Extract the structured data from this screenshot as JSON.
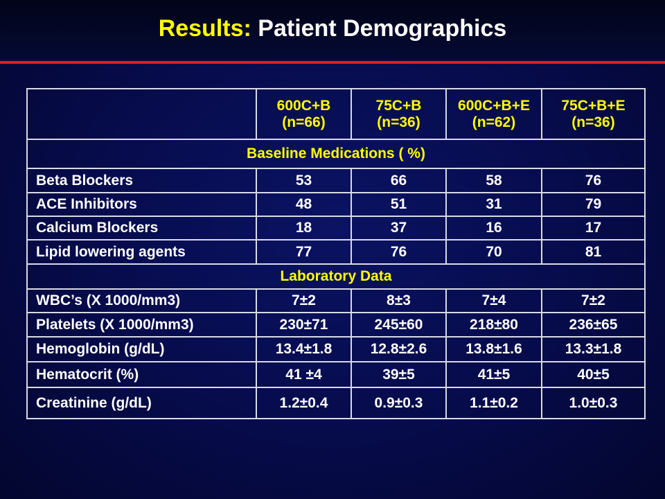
{
  "slide": {
    "title_accent": "Results:",
    "title_main": "Patient Demographics"
  },
  "table": {
    "columns": [
      {
        "name": "600C+B",
        "n": "(n=66)"
      },
      {
        "name": "75C+B",
        "n": "(n=36)"
      },
      {
        "name": "600C+B+E",
        "n": "(n=62)"
      },
      {
        "name": "75C+B+E",
        "n": "(n=36)"
      }
    ],
    "sections": [
      {
        "heading": "Baseline Medications ( %)",
        "rows": [
          {
            "label": "Beta Blockers",
            "values": [
              "53",
              "66",
              "58",
              "76"
            ]
          },
          {
            "label": "ACE Inhibitors",
            "values": [
              "48",
              "51",
              "31",
              "79"
            ]
          },
          {
            "label": "Calcium Blockers",
            "values": [
              "18",
              "37",
              "16",
              "17"
            ]
          },
          {
            "label": "Lipid lowering agents",
            "values": [
              "77",
              "76",
              "70",
              "81"
            ]
          }
        ]
      },
      {
        "heading": "Laboratory Data",
        "rows": [
          {
            "label": "WBC’s (X 1000/mm3)",
            "values": [
              "7±2",
              "8±3",
              "7±4",
              "7±2"
            ]
          },
          {
            "label": "Platelets (X 1000/mm3)",
            "values": [
              "230±71",
              "245±60",
              "218±80",
              "236±65"
            ]
          },
          {
            "label": "Hemoglobin (g/dL)",
            "values": [
              "13.4±1.8",
              "12.8±2.6",
              "13.8±1.6",
              "13.3±1.8"
            ]
          },
          {
            "label": "Hematocrit  (%)",
            "values": [
              "41 ±4",
              "39±5",
              "41±5",
              "40±5"
            ]
          },
          {
            "label": "Creatinine (g/dL)",
            "values": [
              "1.2±0.4",
              "0.9±0.3",
              "1.1±0.2",
              "1.0±0.3"
            ]
          }
        ]
      }
    ]
  },
  "colors": {
    "background": "#060b4a",
    "title_accent": "#ffff00",
    "title_text": "#ffffff",
    "rule": "#e0201e",
    "table_border": "#d8dbe6"
  }
}
